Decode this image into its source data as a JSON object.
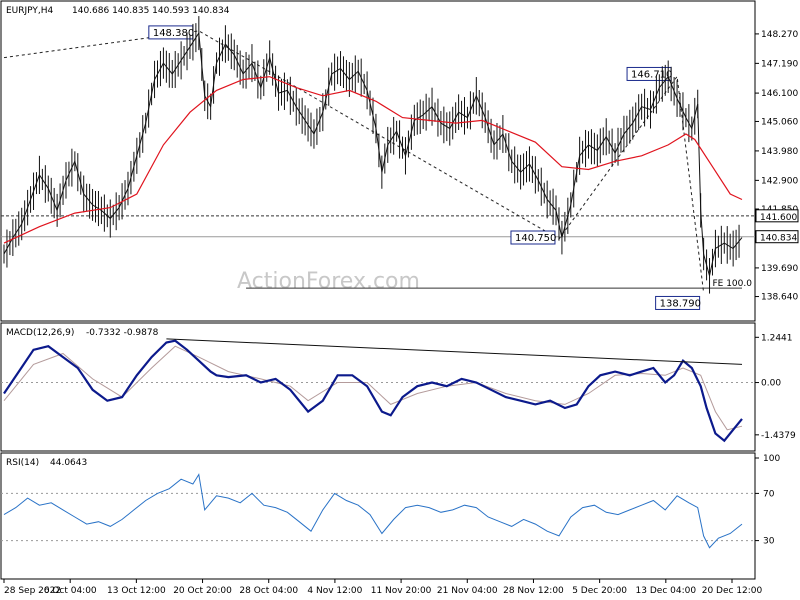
{
  "header": {
    "symbol": "EURJPY,H4",
    "ohlc": "140.686 140.835 140.593 140.834"
  },
  "watermark": "ActionForex.com",
  "colors": {
    "price_line": "#111111",
    "ma": "#e0141e",
    "macd": "#0c1a8c",
    "signal": "#b49b9b",
    "rsi": "#2a73c7",
    "grid": "#9a9a9a"
  },
  "chart_data": [
    {
      "type": "line",
      "title": "EURJPY,H4",
      "ylim": [
        138.0,
        149.0
      ],
      "y_ticks": [
        "148.270",
        "147.190",
        "146.100",
        "145.060",
        "143.980",
        "142.900",
        "141.850",
        "139.690",
        "138.640"
      ],
      "current_price": "140.834",
      "level_line": "141.600",
      "x_ticks": [
        "28 Sep 2022",
        "6 Oct 04:00",
        "13 Oct 12:00",
        "20 Oct 20:00",
        "28 Oct 04:00",
        "4 Nov 12:00",
        "11 Nov 20:00",
        "21 Nov 04:00",
        "28 Nov 12:00",
        "5 Dec 20:00",
        "13 Dec 04:00",
        "20 Dec 12:00"
      ],
      "annotations": [
        {
          "text": "148.380",
          "value": 148.38
        },
        {
          "text": "140.750",
          "value": 140.75
        },
        {
          "text": "146.710",
          "value": 146.71
        },
        {
          "text": "138.790",
          "value": 138.79
        },
        {
          "text": "FE 100.0",
          "value": 138.95
        }
      ],
      "price_series": [
        [
          0,
          140.2
        ],
        [
          3,
          140.8
        ],
        [
          6,
          141.3
        ],
        [
          9,
          142.2
        ],
        [
          12,
          143.1
        ],
        [
          15,
          142.6
        ],
        [
          18,
          141.8
        ],
        [
          21,
          142.9
        ],
        [
          24,
          143.6
        ],
        [
          27,
          142.4
        ],
        [
          30,
          142.0
        ],
        [
          33,
          141.8
        ],
        [
          36,
          141.5
        ],
        [
          39,
          141.9
        ],
        [
          42,
          142.6
        ],
        [
          45,
          143.8
        ],
        [
          48,
          145.0
        ],
        [
          51,
          146.6
        ],
        [
          54,
          147.2
        ],
        [
          57,
          146.8
        ],
        [
          60,
          147.3
        ],
        [
          63,
          147.8
        ],
        [
          66,
          148.3
        ],
        [
          68,
          146.0
        ],
        [
          70,
          145.6
        ],
        [
          72,
          147.2
        ],
        [
          75,
          147.9
        ],
        [
          78,
          147.5
        ],
        [
          81,
          146.8
        ],
        [
          84,
          147.2
        ],
        [
          87,
          146.3
        ],
        [
          90,
          147.4
        ],
        [
          93,
          146.1
        ],
        [
          96,
          146.2
        ],
        [
          99,
          145.6
        ],
        [
          102,
          145.1
        ],
        [
          105,
          144.6
        ],
        [
          108,
          145.4
        ],
        [
          111,
          146.8
        ],
        [
          114,
          147.0
        ],
        [
          117,
          146.6
        ],
        [
          120,
          146.9
        ],
        [
          123,
          146.2
        ],
        [
          126,
          144.8
        ],
        [
          128,
          143.2
        ],
        [
          130,
          144.2
        ],
        [
          133,
          144.7
        ],
        [
          136,
          143.8
        ],
        [
          139,
          145.1
        ],
        [
          142,
          145.3
        ],
        [
          145,
          145.6
        ],
        [
          148,
          145.0
        ],
        [
          151,
          144.8
        ],
        [
          154,
          145.4
        ],
        [
          157,
          145.2
        ],
        [
          160,
          146.0
        ],
        [
          163,
          145.2
        ],
        [
          166,
          144.2
        ],
        [
          169,
          144.6
        ],
        [
          172,
          143.6
        ],
        [
          175,
          143.2
        ],
        [
          178,
          143.5
        ],
        [
          181,
          142.9
        ],
        [
          184,
          142.2
        ],
        [
          187,
          141.8
        ],
        [
          189,
          140.8
        ],
        [
          192,
          142.0
        ],
        [
          195,
          143.8
        ],
        [
          198,
          144.2
        ],
        [
          201,
          144.0
        ],
        [
          204,
          144.5
        ],
        [
          207,
          143.9
        ],
        [
          210,
          144.6
        ],
        [
          213,
          145.0
        ],
        [
          216,
          145.6
        ],
        [
          219,
          145.5
        ],
        [
          222,
          146.3
        ],
        [
          225,
          146.7
        ],
        [
          228,
          145.9
        ],
        [
          231,
          145.2
        ],
        [
          233,
          144.8
        ],
        [
          235,
          145.7
        ],
        [
          236,
          141.8
        ],
        [
          237,
          140.2
        ],
        [
          239,
          139.4
        ],
        [
          241,
          140.4
        ],
        [
          244,
          140.6
        ],
        [
          247,
          140.4
        ],
        [
          250,
          140.8
        ]
      ],
      "ma_series": [
        [
          0,
          140.6
        ],
        [
          12,
          141.2
        ],
        [
          24,
          141.7
        ],
        [
          36,
          141.9
        ],
        [
          45,
          142.4
        ],
        [
          54,
          144.2
        ],
        [
          63,
          145.4
        ],
        [
          72,
          146.2
        ],
        [
          81,
          146.6
        ],
        [
          90,
          146.7
        ],
        [
          99,
          146.3
        ],
        [
          108,
          146.0
        ],
        [
          117,
          146.2
        ],
        [
          126,
          145.8
        ],
        [
          135,
          145.2
        ],
        [
          144,
          145.1
        ],
        [
          153,
          145.0
        ],
        [
          162,
          145.1
        ],
        [
          171,
          144.7
        ],
        [
          180,
          144.3
        ],
        [
          189,
          143.4
        ],
        [
          198,
          143.3
        ],
        [
          207,
          143.6
        ],
        [
          216,
          143.8
        ],
        [
          225,
          144.2
        ],
        [
          231,
          144.6
        ],
        [
          234,
          144.4
        ],
        [
          240,
          143.4
        ],
        [
          246,
          142.4
        ],
        [
          250,
          142.2
        ]
      ]
    },
    {
      "type": "line",
      "title": "MACD(12,26,9)",
      "values_text": "-0.7332 -0.9878",
      "ylim": [
        -1.8,
        1.5
      ],
      "y_ticks": [
        "1.2441",
        "0.00",
        "-1.4379"
      ],
      "macd": [
        [
          0,
          -0.3
        ],
        [
          5,
          0.3
        ],
        [
          10,
          0.9
        ],
        [
          15,
          1.0
        ],
        [
          20,
          0.7
        ],
        [
          25,
          0.4
        ],
        [
          30,
          -0.2
        ],
        [
          35,
          -0.5
        ],
        [
          40,
          -0.4
        ],
        [
          45,
          0.2
        ],
        [
          50,
          0.7
        ],
        [
          55,
          1.1
        ],
        [
          58,
          1.15
        ],
        [
          62,
          0.9
        ],
        [
          66,
          0.6
        ],
        [
          70,
          0.3
        ],
        [
          72,
          0.2
        ],
        [
          76,
          0.15
        ],
        [
          82,
          0.2
        ],
        [
          87,
          0.0
        ],
        [
          92,
          0.1
        ],
        [
          97,
          -0.2
        ],
        [
          103,
          -0.8
        ],
        [
          108,
          -0.5
        ],
        [
          113,
          0.2
        ],
        [
          118,
          0.2
        ],
        [
          123,
          -0.1
        ],
        [
          128,
          -0.8
        ],
        [
          131,
          -0.9
        ],
        [
          135,
          -0.4
        ],
        [
          140,
          -0.1
        ],
        [
          145,
          0.0
        ],
        [
          150,
          -0.1
        ],
        [
          155,
          0.1
        ],
        [
          160,
          0.0
        ],
        [
          165,
          -0.2
        ],
        [
          170,
          -0.4
        ],
        [
          175,
          -0.5
        ],
        [
          180,
          -0.6
        ],
        [
          185,
          -0.5
        ],
        [
          190,
          -0.7
        ],
        [
          194,
          -0.6
        ],
        [
          198,
          -0.1
        ],
        [
          202,
          0.2
        ],
        [
          207,
          0.3
        ],
        [
          212,
          0.2
        ],
        [
          216,
          0.3
        ],
        [
          220,
          0.4
        ],
        [
          224,
          0.0
        ],
        [
          227,
          0.2
        ],
        [
          230,
          0.6
        ],
        [
          233,
          0.4
        ],
        [
          236,
          -0.1
        ],
        [
          238,
          -0.7
        ],
        [
          241,
          -1.4
        ],
        [
          244,
          -1.6
        ],
        [
          247,
          -1.3
        ],
        [
          250,
          -1.0
        ]
      ],
      "signal": [
        [
          0,
          -0.5
        ],
        [
          10,
          0.5
        ],
        [
          20,
          0.8
        ],
        [
          30,
          0.1
        ],
        [
          40,
          -0.4
        ],
        [
          50,
          0.4
        ],
        [
          58,
          1.0
        ],
        [
          66,
          0.7
        ],
        [
          76,
          0.3
        ],
        [
          87,
          0.1
        ],
        [
          97,
          -0.1
        ],
        [
          103,
          -0.5
        ],
        [
          113,
          0.0
        ],
        [
          123,
          0.0
        ],
        [
          131,
          -0.6
        ],
        [
          140,
          -0.3
        ],
        [
          150,
          -0.1
        ],
        [
          160,
          0.0
        ],
        [
          170,
          -0.3
        ],
        [
          180,
          -0.5
        ],
        [
          190,
          -0.6
        ],
        [
          198,
          -0.3
        ],
        [
          207,
          0.2
        ],
        [
          216,
          0.25
        ],
        [
          224,
          0.2
        ],
        [
          230,
          0.4
        ],
        [
          236,
          0.2
        ],
        [
          241,
          -0.8
        ],
        [
          245,
          -1.3
        ],
        [
          250,
          -1.2
        ]
      ],
      "trendline": [
        [
          55,
          1.2
        ],
        [
          250,
          0.5
        ]
      ]
    },
    {
      "type": "line",
      "title": "RSI(14)",
      "values_text": "44.0643",
      "ylim": [
        0,
        100
      ],
      "y_ticks": [
        "100",
        "70",
        "30"
      ],
      "levels": [
        70,
        30
      ],
      "rsi": [
        [
          0,
          52
        ],
        [
          4,
          58
        ],
        [
          8,
          66
        ],
        [
          12,
          60
        ],
        [
          16,
          62
        ],
        [
          20,
          56
        ],
        [
          24,
          50
        ],
        [
          28,
          44
        ],
        [
          32,
          46
        ],
        [
          36,
          42
        ],
        [
          40,
          48
        ],
        [
          44,
          56
        ],
        [
          48,
          64
        ],
        [
          52,
          70
        ],
        [
          56,
          74
        ],
        [
          60,
          82
        ],
        [
          64,
          78
        ],
        [
          66,
          86
        ],
        [
          68,
          56
        ],
        [
          72,
          68
        ],
        [
          76,
          66
        ],
        [
          80,
          62
        ],
        [
          84,
          70
        ],
        [
          88,
          60
        ],
        [
          92,
          58
        ],
        [
          96,
          54
        ],
        [
          100,
          46
        ],
        [
          104,
          38
        ],
        [
          108,
          56
        ],
        [
          112,
          70
        ],
        [
          116,
          64
        ],
        [
          120,
          60
        ],
        [
          124,
          52
        ],
        [
          128,
          36
        ],
        [
          132,
          48
        ],
        [
          136,
          58
        ],
        [
          140,
          60
        ],
        [
          144,
          58
        ],
        [
          148,
          54
        ],
        [
          152,
          56
        ],
        [
          156,
          60
        ],
        [
          160,
          58
        ],
        [
          164,
          50
        ],
        [
          168,
          46
        ],
        [
          172,
          42
        ],
        [
          176,
          48
        ],
        [
          180,
          44
        ],
        [
          184,
          38
        ],
        [
          188,
          34
        ],
        [
          192,
          50
        ],
        [
          196,
          58
        ],
        [
          200,
          60
        ],
        [
          204,
          54
        ],
        [
          208,
          52
        ],
        [
          212,
          56
        ],
        [
          216,
          60
        ],
        [
          220,
          64
        ],
        [
          224,
          56
        ],
        [
          228,
          68
        ],
        [
          232,
          62
        ],
        [
          235,
          58
        ],
        [
          237,
          34
        ],
        [
          239,
          24
        ],
        [
          242,
          32
        ],
        [
          246,
          36
        ],
        [
          250,
          44
        ]
      ]
    }
  ]
}
